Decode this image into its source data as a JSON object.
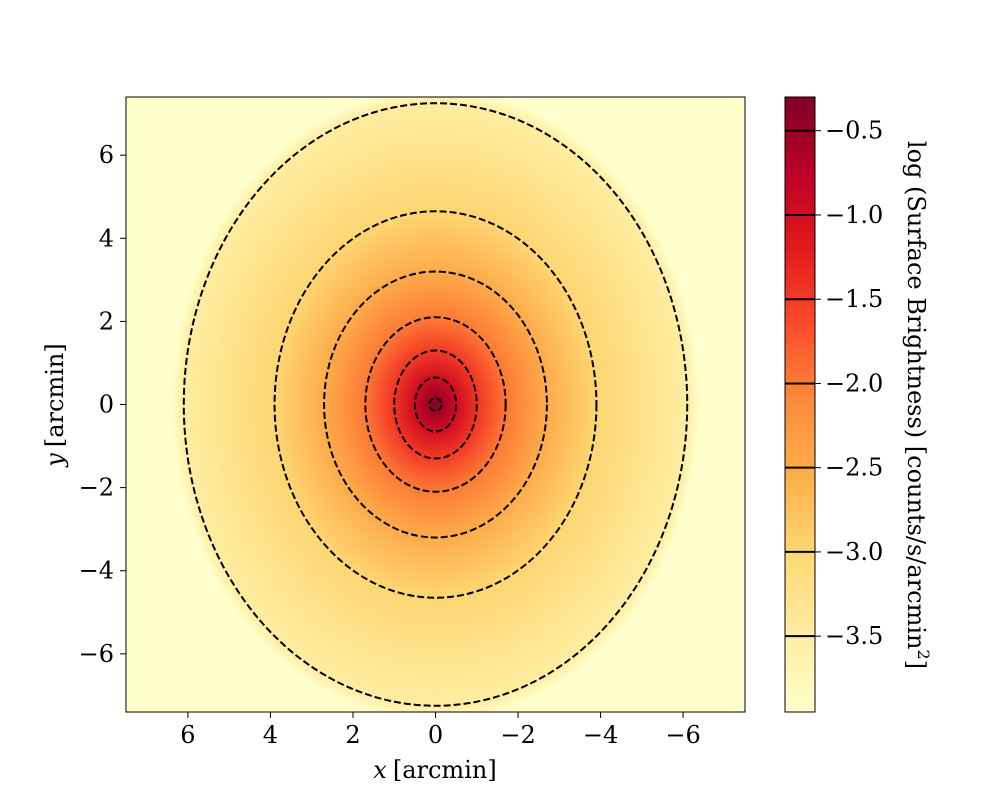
{
  "chart_data": {
    "type": "heatmap",
    "title": "",
    "xlabel_var": "x",
    "xlabel_unit": "[arcmin]",
    "ylabel_var": "y",
    "ylabel_unit": "[arcmin]",
    "xlim": [
      7.5,
      -7.5
    ],
    "ylim": [
      -7.4,
      7.4
    ],
    "x_ticks": [
      6,
      4,
      2,
      0,
      -2,
      -4,
      -6
    ],
    "y_ticks": [
      -6,
      -4,
      -2,
      0,
      2,
      4,
      6
    ],
    "x_tick_labels": [
      "6",
      "4",
      "2",
      "0",
      "−2",
      "−4",
      "−6"
    ],
    "y_tick_labels": [
      "−6",
      "−4",
      "−2",
      "0",
      "2",
      "4",
      "6"
    ],
    "colorbar": {
      "label_main": "log  (Surface Brightness) [counts/s/arcmin",
      "label_sup": "2",
      "label_end": "]",
      "range": [
        -3.95,
        -0.3
      ],
      "ticks": [
        -3.5,
        -3.0,
        -2.5,
        -2.0,
        -1.5,
        -1.0,
        -0.5
      ],
      "tick_labels": [
        "−3.5",
        "−3.0",
        "−2.5",
        "−2.0",
        "−1.5",
        "−1.0",
        "−0.5"
      ],
      "colormap": "YlOrRd",
      "colors": [
        "#ffffcc",
        "#ffeda0",
        "#fed976",
        "#feb24c",
        "#fd8d3c",
        "#fc4e2a",
        "#e31a1c",
        "#bd0026",
        "#800026"
      ]
    },
    "contours": [
      {
        "level": -0.5,
        "center": [
          0,
          0
        ],
        "semi_x": 0.15,
        "semi_y": 0.15
      },
      {
        "level": -1.0,
        "center": [
          0,
          0
        ],
        "semi_x": 0.5,
        "semi_y": 0.65
      },
      {
        "level": -1.5,
        "center": [
          0,
          0
        ],
        "semi_x": 1.0,
        "semi_y": 1.3
      },
      {
        "level": -2.0,
        "center": [
          0,
          0
        ],
        "semi_x": 1.7,
        "semi_y": 2.1
      },
      {
        "level": -2.5,
        "center": [
          0,
          0
        ],
        "semi_x": 2.7,
        "semi_y": 3.2
      },
      {
        "level": -3.0,
        "center": [
          0,
          0
        ],
        "semi_x": 3.9,
        "semi_y": 4.65
      },
      {
        "level": -3.5,
        "center": [
          0,
          0
        ],
        "semi_x": 6.1,
        "semi_y": 7.25
      }
    ],
    "contour_style": "dashed",
    "contour_color": "#000000",
    "peak_value": -0.3,
    "edge_value": -3.95
  }
}
